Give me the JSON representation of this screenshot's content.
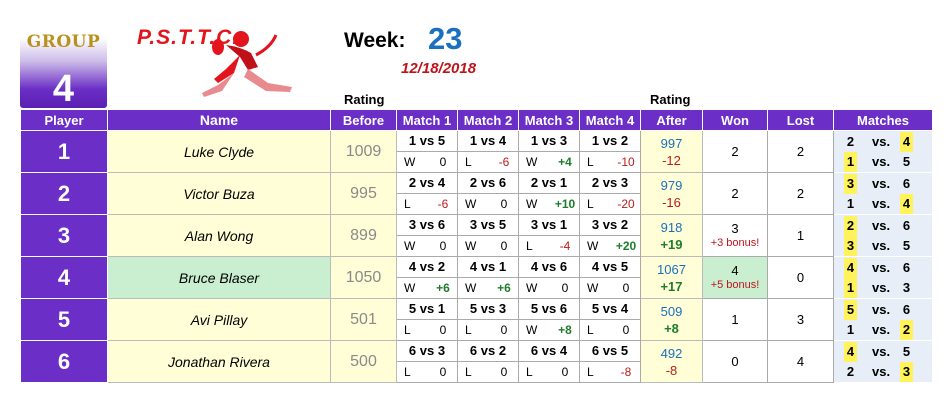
{
  "header": {
    "group_label": "GROUP",
    "group_number": "4",
    "logo_text": "P.S.T.T.C.",
    "week_label": "Week:",
    "week_number": "23",
    "date": "12/18/2018",
    "rating_label_before": "Rating",
    "rating_label_after": "Rating"
  },
  "columns": {
    "player": "Player",
    "name": "Name",
    "before": "Before",
    "match1": "Match 1",
    "match2": "Match 2",
    "match3": "Match 3",
    "match4": "Match 4",
    "after": "After",
    "won": "Won",
    "lost": "Lost",
    "matches": "Matches"
  },
  "rows": [
    {
      "player": "1",
      "name": "Luke Clyde",
      "before": "1009",
      "matches": [
        {
          "vs": "1 vs 5",
          "wl": "W",
          "pts": "0"
        },
        {
          "vs": "1 vs 4",
          "wl": "L",
          "pts": "-6"
        },
        {
          "vs": "1 vs 3",
          "wl": "W",
          "pts": "+4"
        },
        {
          "vs": "1 vs 2",
          "wl": "L",
          "pts": "-10"
        }
      ],
      "after": "997",
      "delta": "-12",
      "won": "2",
      "won_bonus": "",
      "lost": "2",
      "schedule": [
        {
          "a": "2",
          "vs": "vs.",
          "b": "4"
        },
        {
          "a": "1",
          "vs": "vs.",
          "b": "5"
        }
      ]
    },
    {
      "player": "2",
      "name": "Victor Buza",
      "before": "995",
      "matches": [
        {
          "vs": "2 vs 4",
          "wl": "L",
          "pts": "-6"
        },
        {
          "vs": "2 vs 6",
          "wl": "W",
          "pts": "0"
        },
        {
          "vs": "2 vs 1",
          "wl": "W",
          "pts": "+10"
        },
        {
          "vs": "2 vs 3",
          "wl": "L",
          "pts": "-20"
        }
      ],
      "after": "979",
      "delta": "-16",
      "won": "2",
      "won_bonus": "",
      "lost": "2",
      "schedule": [
        {
          "a": "3",
          "vs": "vs.",
          "b": "6"
        },
        {
          "a": "1",
          "vs": "vs.",
          "b": "4"
        }
      ]
    },
    {
      "player": "3",
      "name": "Alan Wong",
      "before": "899",
      "matches": [
        {
          "vs": "3 vs 6",
          "wl": "W",
          "pts": "0"
        },
        {
          "vs": "3 vs 5",
          "wl": "W",
          "pts": "0"
        },
        {
          "vs": "3 vs 1",
          "wl": "L",
          "pts": "-4"
        },
        {
          "vs": "3 vs 2",
          "wl": "W",
          "pts": "+20"
        }
      ],
      "after": "918",
      "delta": "+19",
      "won": "3",
      "won_bonus": "+3 bonus!",
      "lost": "1",
      "schedule": [
        {
          "a": "2",
          "vs": "vs.",
          "b": "6"
        },
        {
          "a": "3",
          "vs": "vs.",
          "b": "5"
        }
      ]
    },
    {
      "player": "4",
      "name": "Bruce Blaser",
      "before": "1050",
      "matches": [
        {
          "vs": "4 vs 2",
          "wl": "W",
          "pts": "+6"
        },
        {
          "vs": "4 vs 1",
          "wl": "W",
          "pts": "+6"
        },
        {
          "vs": "4 vs 6",
          "wl": "W",
          "pts": "0"
        },
        {
          "vs": "4 vs 5",
          "wl": "W",
          "pts": "0"
        }
      ],
      "after": "1067",
      "delta": "+17",
      "won": "4",
      "won_bonus": "+5 bonus!",
      "lost": "0",
      "schedule": [
        {
          "a": "4",
          "vs": "vs.",
          "b": "6"
        },
        {
          "a": "1",
          "vs": "vs.",
          "b": "3"
        }
      ]
    },
    {
      "player": "5",
      "name": "Avi Pillay",
      "before": "501",
      "matches": [
        {
          "vs": "5 vs 1",
          "wl": "L",
          "pts": "0"
        },
        {
          "vs": "5 vs 3",
          "wl": "L",
          "pts": "0"
        },
        {
          "vs": "5 vs 6",
          "wl": "W",
          "pts": "+8"
        },
        {
          "vs": "5 vs 4",
          "wl": "L",
          "pts": "0"
        }
      ],
      "after": "509",
      "delta": "+8",
      "won": "1",
      "won_bonus": "",
      "lost": "3",
      "schedule": [
        {
          "a": "5",
          "vs": "vs.",
          "b": "6"
        },
        {
          "a": "1",
          "vs": "vs.",
          "b": "2"
        }
      ]
    },
    {
      "player": "6",
      "name": "Jonathan Rivera",
      "before": "500",
      "matches": [
        {
          "vs": "6 vs 3",
          "wl": "L",
          "pts": "0"
        },
        {
          "vs": "6 vs 2",
          "wl": "L",
          "pts": "0"
        },
        {
          "vs": "6 vs 4",
          "wl": "L",
          "pts": "0"
        },
        {
          "vs": "6 vs 5",
          "wl": "L",
          "pts": "-8"
        }
      ],
      "after": "492",
      "delta": "-8",
      "won": "0",
      "won_bonus": "",
      "lost": "4",
      "schedule": [
        {
          "a": "4",
          "vs": "vs.",
          "b": "5"
        },
        {
          "a": "2",
          "vs": "vs.",
          "b": "3"
        }
      ]
    }
  ],
  "highlights": {
    "sched_yellow_color": "#fff25a",
    "highlight_row_color": "#c9efd0",
    "header_color": "#6b2ec6",
    "positive_color": "#1e7d2c",
    "negative_color": "#b81c1c"
  }
}
